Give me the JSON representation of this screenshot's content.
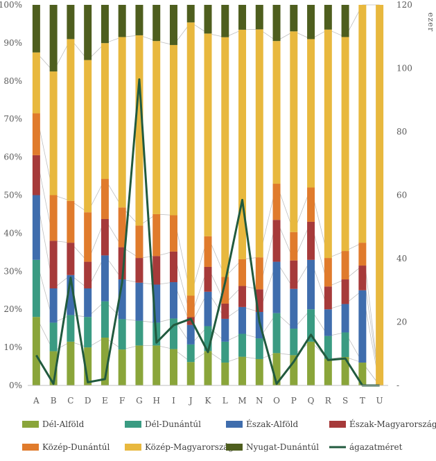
{
  "chart_data": {
    "type": "bar",
    "stacking": "percent",
    "categories": [
      "A",
      "B",
      "C",
      "D",
      "E",
      "F",
      "G",
      "H",
      "I",
      "J",
      "K",
      "L",
      "M",
      "N",
      "O",
      "P",
      "Q",
      "R",
      "S",
      "T",
      "U"
    ],
    "series": [
      {
        "name": "Dél-Alföld",
        "color": "#8aa53a",
        "values": [
          18,
          9,
          11.5,
          10,
          12.5,
          9.5,
          10.5,
          10.5,
          9.5,
          6,
          9,
          6,
          7.5,
          7,
          8.5,
          8,
          11.5,
          7,
          7.5,
          6,
          0
        ]
      },
      {
        "name": "Dél-Dunántúl",
        "color": "#3a9b82",
        "values": [
          15,
          7.5,
          7,
          8,
          9.5,
          8,
          6.5,
          6,
          8,
          4.5,
          6.5,
          5.5,
          6,
          5.5,
          10.5,
          7,
          8.5,
          6,
          6.5,
          0,
          0
        ]
      },
      {
        "name": "Észak-Alföld",
        "color": "#3f6dad",
        "values": [
          17,
          9,
          10.5,
          7.5,
          12,
          10.5,
          10,
          10,
          9.5,
          5,
          9,
          6,
          7,
          7,
          13.5,
          10.5,
          13,
          7,
          7.5,
          19,
          0
        ]
      },
      {
        "name": "Észak-Magyarország",
        "color": "#a63a3a",
        "values": [
          10.5,
          12.5,
          8.5,
          7,
          9.5,
          8.5,
          6.5,
          7.5,
          8,
          2,
          6.5,
          4,
          5.5,
          6,
          11,
          7.5,
          10,
          6,
          6.5,
          6.5,
          0
        ]
      },
      {
        "name": "Közép-Dunántúl",
        "color": "#e07b2c",
        "values": [
          11,
          12,
          11,
          13,
          10.5,
          10.5,
          8.5,
          11,
          9.5,
          5.5,
          8,
          7,
          7,
          8.5,
          9.5,
          7.5,
          9,
          7.5,
          7.5,
          6,
          0
        ]
      },
      {
        "name": "Közép-Magyarország",
        "color": "#e8b83e",
        "values": [
          16,
          32.5,
          42.5,
          40,
          35.5,
          45,
          50,
          45.5,
          44.5,
          70,
          53,
          63,
          60,
          60.5,
          37.5,
          53,
          39,
          60,
          56.5,
          62.5,
          100
        ]
      },
      {
        "name": "Nyugat-Dunántúl",
        "color": "#4e5e1e",
        "values": [
          12.5,
          17.5,
          9,
          14.5,
          10,
          8.5,
          8,
          9.5,
          10.5,
          4.5,
          7.5,
          8.5,
          6.5,
          6.5,
          9.5,
          7,
          9,
          6.5,
          8.5,
          0,
          0
        ]
      }
    ],
    "line_series": {
      "name": "ágazatméret",
      "color": "#215a3e",
      "values": [
        9.5,
        0.5,
        34,
        1,
        2,
        32.5,
        96.5,
        13.5,
        19,
        21,
        10.5,
        32.5,
        58.5,
        20,
        0.5,
        7.5,
        16,
        8,
        8.5,
        0,
        0
      ]
    },
    "y_left": {
      "ticks": [
        "0%",
        "10%",
        "20%",
        "30%",
        "40%",
        "50%",
        "60%",
        "70%",
        "80%",
        "90%",
        "100%"
      ],
      "min": 0,
      "max": 100
    },
    "y_right": {
      "ticks": [
        "-",
        "20",
        "40",
        "60",
        "80",
        "100",
        "120"
      ],
      "min": 0,
      "max": 120,
      "label": "ezer"
    },
    "legend_position": "bottom",
    "grid": false
  }
}
